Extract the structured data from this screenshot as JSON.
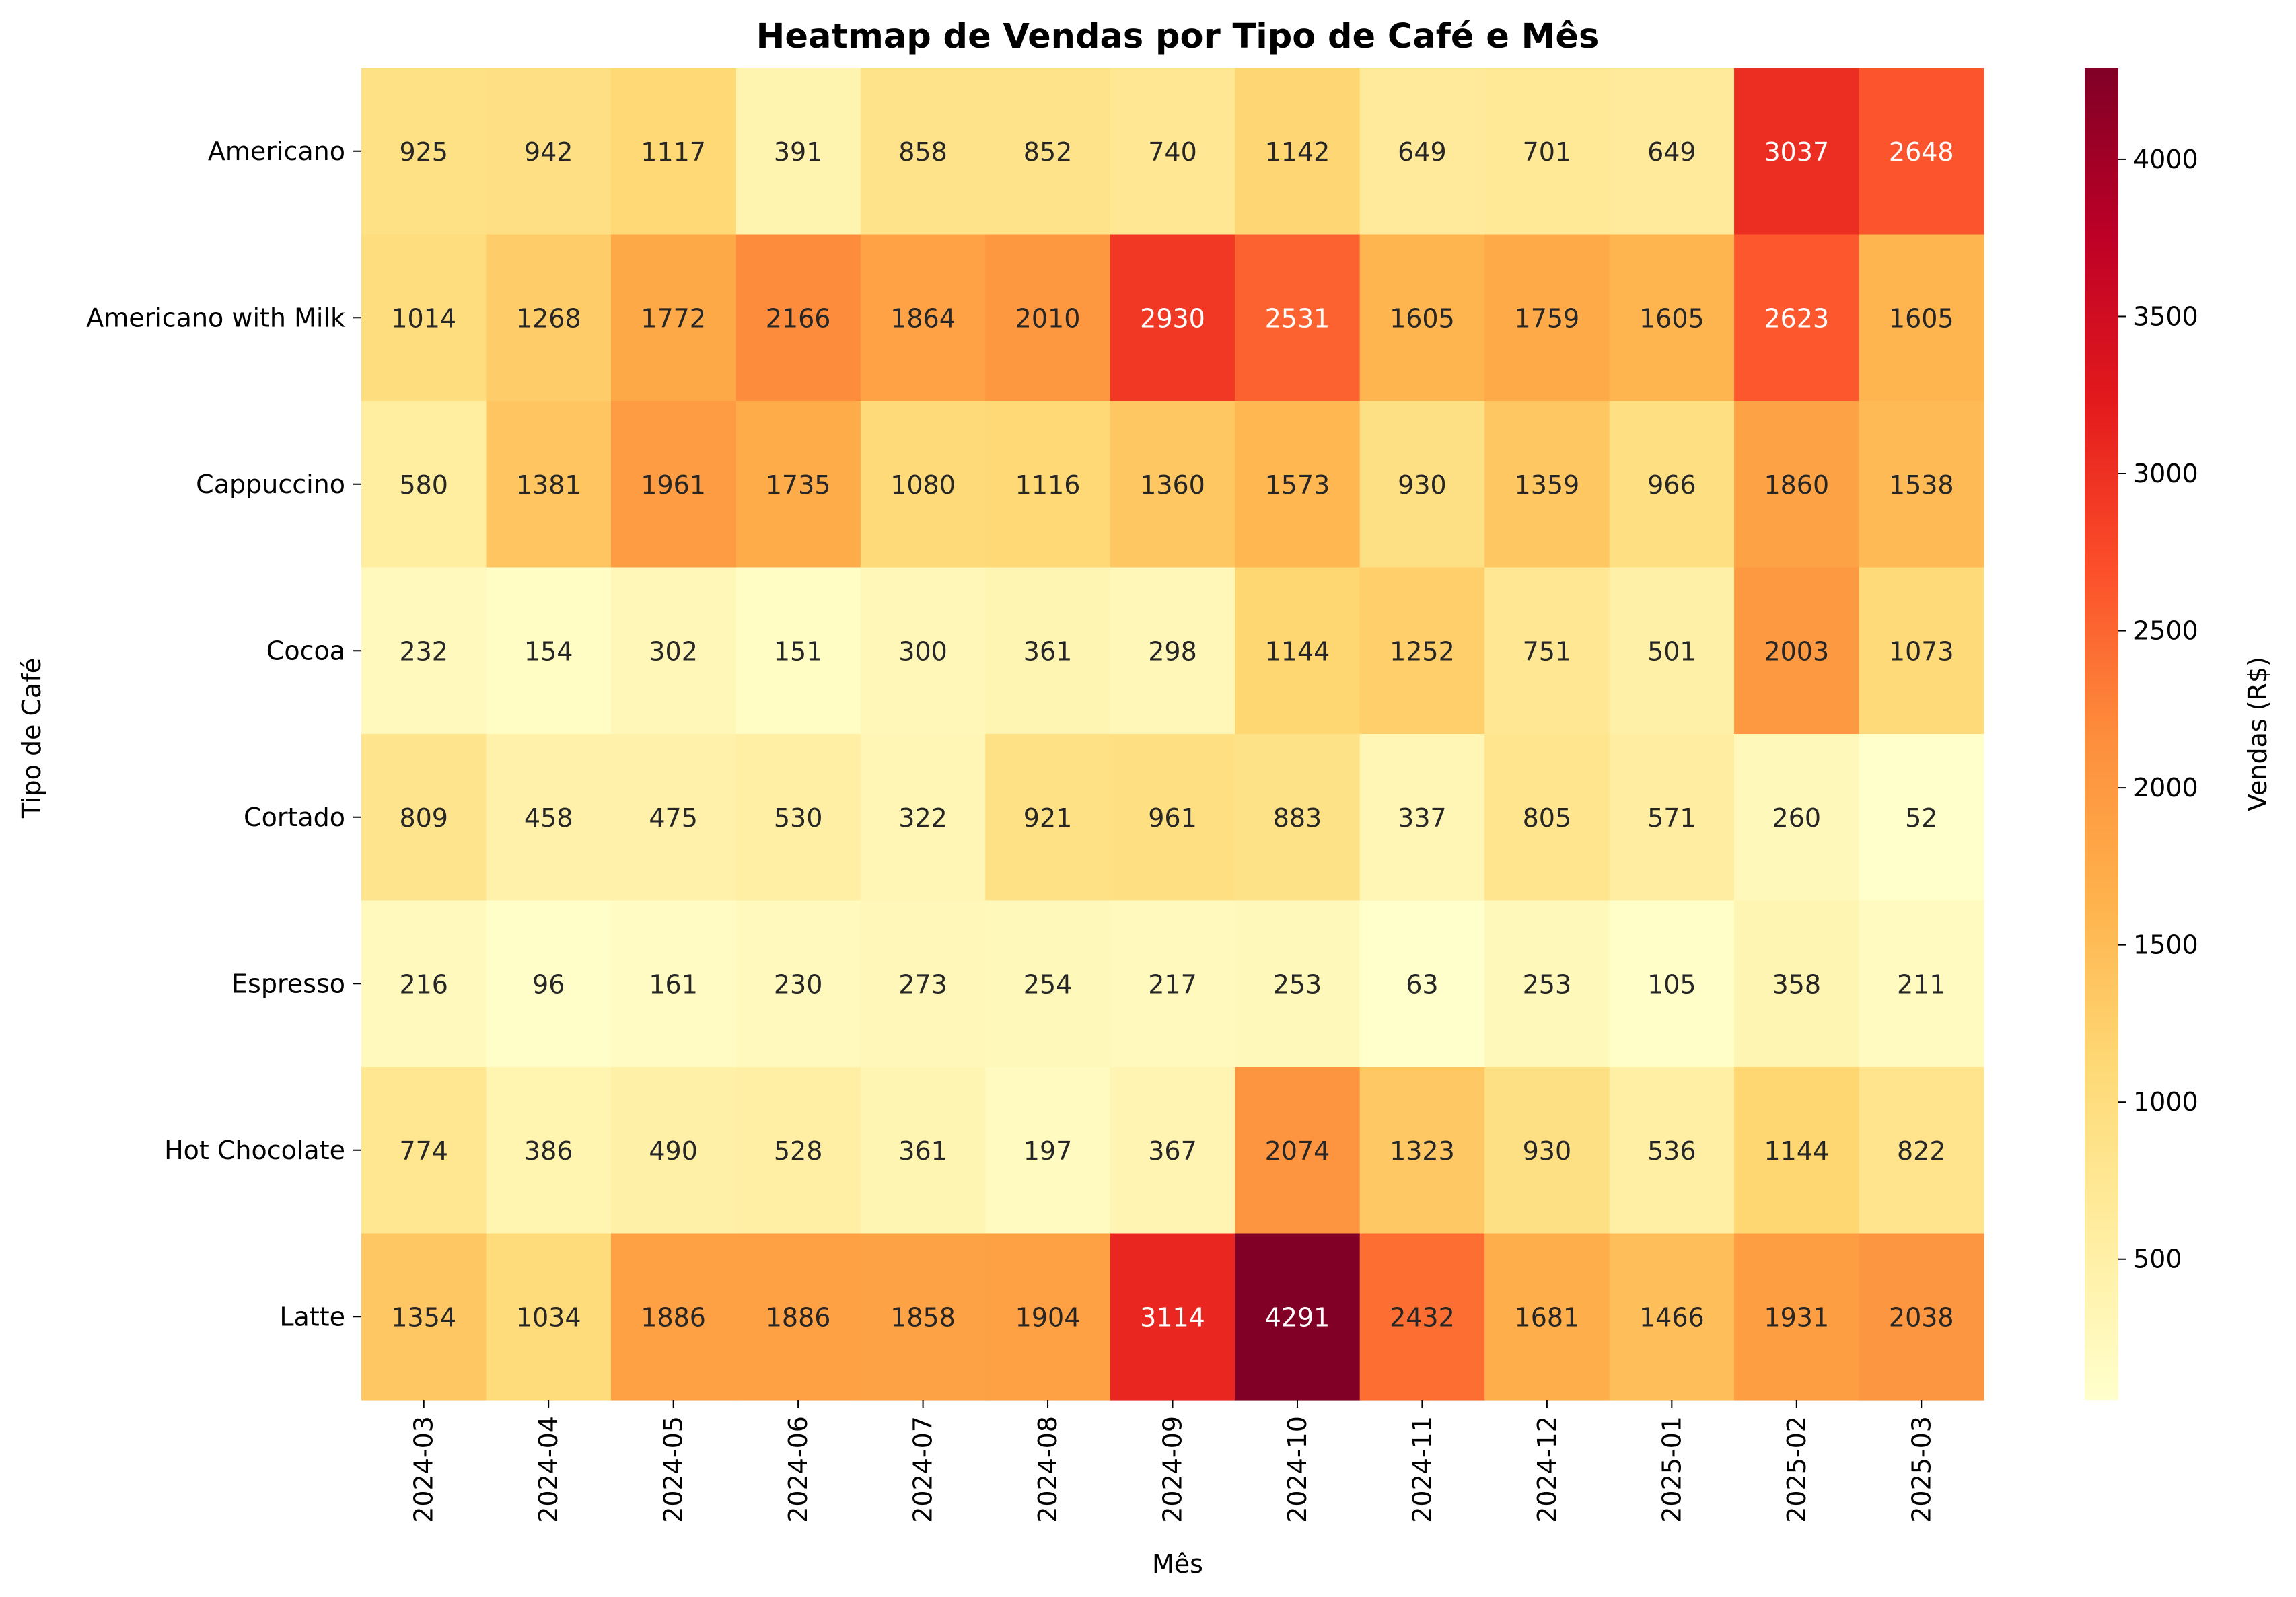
{
  "chart_data": {
    "type": "heatmap",
    "title": "Heatmap de Vendas por Tipo de Café e Mês",
    "xlabel": "Mês",
    "ylabel": "Tipo de Café",
    "colorbar_label": "Vendas (R$)",
    "colormap": "YlOrRd",
    "color_range": [
      52,
      4291
    ],
    "colorbar_ticks": [
      500,
      1000,
      1500,
      2000,
      2500,
      3000,
      3500,
      4000
    ],
    "x": [
      "2024-03",
      "2024-04",
      "2024-05",
      "2024-06",
      "2024-07",
      "2024-08",
      "2024-09",
      "2024-10",
      "2024-11",
      "2024-12",
      "2025-01",
      "2025-02",
      "2025-03"
    ],
    "y": [
      "Americano",
      "Americano with Milk",
      "Cappuccino",
      "Cocoa",
      "Cortado",
      "Espresso",
      "Hot Chocolate",
      "Latte"
    ],
    "values": [
      [
        925,
        942,
        1117,
        391,
        858,
        852,
        740,
        1142,
        649,
        701,
        649,
        3037,
        2648
      ],
      [
        1014,
        1268,
        1772,
        2166,
        1864,
        2010,
        2930,
        2531,
        1605,
        1759,
        1605,
        2623,
        1605
      ],
      [
        580,
        1381,
        1961,
        1735,
        1080,
        1116,
        1360,
        1573,
        930,
        1359,
        966,
        1860,
        1538
      ],
      [
        232,
        154,
        302,
        151,
        300,
        361,
        298,
        1144,
        1252,
        751,
        501,
        2003,
        1073
      ],
      [
        809,
        458,
        475,
        530,
        322,
        921,
        961,
        883,
        337,
        805,
        571,
        260,
        52
      ],
      [
        216,
        96,
        161,
        230,
        273,
        254,
        217,
        253,
        63,
        253,
        105,
        358,
        211
      ],
      [
        774,
        386,
        490,
        528,
        361,
        197,
        367,
        2074,
        1323,
        930,
        536,
        1144,
        822
      ],
      [
        1354,
        1034,
        1886,
        1886,
        1858,
        1904,
        3114,
        4291,
        2432,
        1681,
        1466,
        1931,
        2038
      ]
    ]
  }
}
